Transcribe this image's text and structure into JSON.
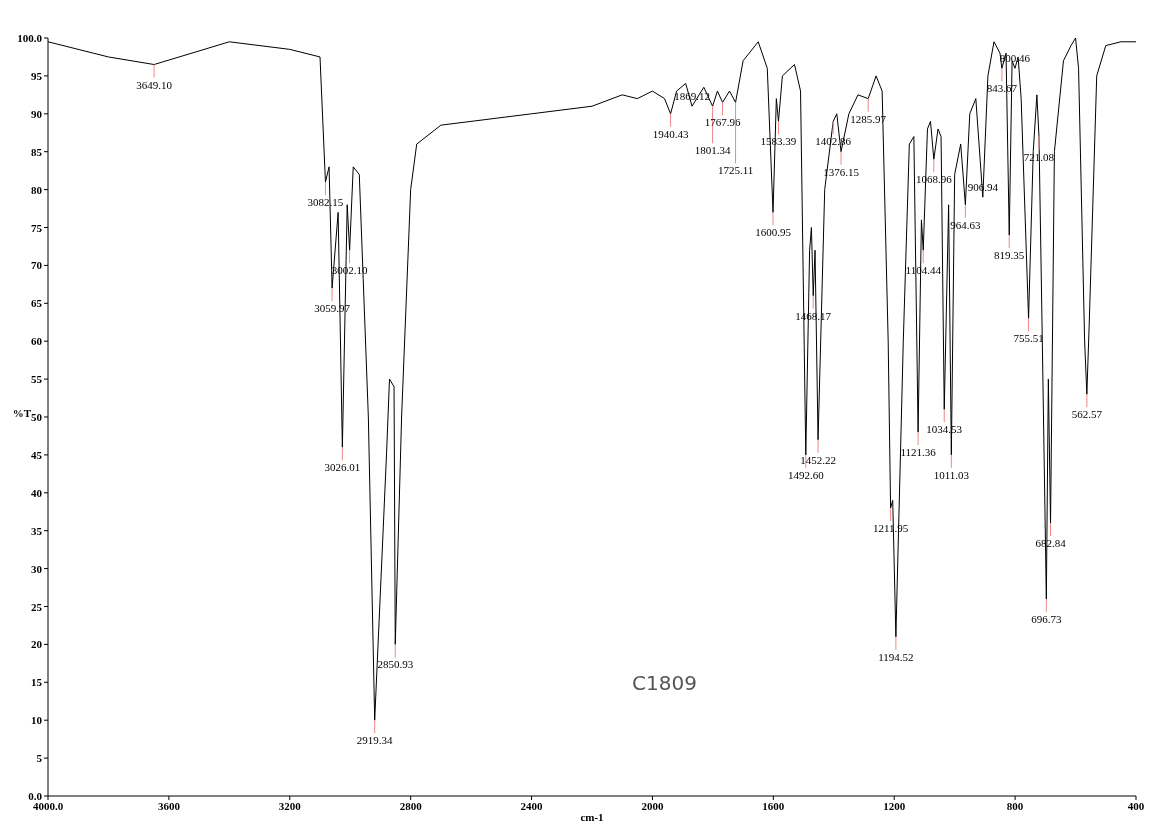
{
  "chart_data": {
    "type": "line",
    "xlabel": "cm-1",
    "ylabel": "%T",
    "xlim": [
      4000,
      400
    ],
    "ylim": [
      0,
      100
    ],
    "xticks": [
      {
        "value": 4000,
        "label": "4000.0"
      },
      3600,
      3200,
      2800,
      2400,
      2000,
      1600,
      1200,
      800,
      400
    ],
    "yticks": [
      {
        "value": 0,
        "label": "0.0"
      },
      5,
      10,
      15,
      20,
      25,
      30,
      35,
      40,
      45,
      50,
      55,
      60,
      65,
      70,
      75,
      80,
      85,
      90,
      95,
      {
        "value": 100,
        "label": "100.0"
      }
    ],
    "grid": false,
    "line_style": "solid",
    "series": [
      {
        "color": "#000000",
        "x": [
          4000,
          3800,
          3649,
          3400,
          3200,
          3100,
          3082,
          3070,
          3060,
          3040,
          3026,
          3010,
          3002,
          2990,
          2970,
          2940,
          2919,
          2880,
          2870,
          2855,
          2851,
          2830,
          2800,
          2780,
          2700,
          2600,
          2400,
          2200,
          2100,
          2050,
          2000,
          1960,
          1940,
          1920,
          1890,
          1869,
          1830,
          1801,
          1785,
          1768,
          1745,
          1725,
          1700,
          1650,
          1620,
          1601,
          1590,
          1583,
          1570,
          1530,
          1510,
          1492.6,
          1480,
          1474,
          1468,
          1462,
          1452,
          1430,
          1402,
          1390,
          1376,
          1350,
          1320,
          1286,
          1260,
          1240,
          1220,
          1212,
          1205,
          1194.5,
          1170,
          1150,
          1135,
          1121,
          1110,
          1104,
          1090,
          1080,
          1069,
          1055,
          1045,
          1034.5,
          1020,
          1011,
          1000,
          980,
          964.6,
          950,
          930,
          906.9,
          890,
          870,
          850,
          843.7,
          830,
          819.4,
          810,
          800.5,
          790,
          780,
          755.5,
          740,
          728,
          721,
          710,
          696.7,
          690,
          682.8,
          670,
          640,
          615,
          600,
          590,
          570,
          562.6,
          555,
          530,
          500,
          450,
          400
        ],
        "values": [
          99.5,
          97.5,
          96.5,
          99.5,
          98.5,
          97.5,
          81,
          83,
          67,
          77,
          46,
          78,
          72,
          83,
          82,
          50,
          10,
          45,
          55,
          54,
          20,
          50,
          80,
          86,
          88.5,
          89,
          90,
          91,
          92.5,
          92,
          93,
          92,
          90,
          93,
          94,
          91,
          93.5,
          91,
          93,
          91.5,
          93,
          91.5,
          97,
          99.5,
          96,
          77,
          92,
          89,
          95,
          96.5,
          93,
          45,
          72,
          75,
          66,
          72,
          47,
          80,
          89,
          90,
          85,
          90,
          92.5,
          92,
          95,
          93,
          60,
          38,
          39,
          21,
          60,
          86,
          87,
          48,
          76,
          72,
          88,
          89,
          84,
          88,
          87,
          51,
          78,
          45,
          82,
          86,
          78,
          90,
          92,
          79,
          95,
          99.5,
          98,
          96,
          98,
          74,
          97,
          96,
          97.5,
          92,
          63,
          85,
          92.5,
          87,
          60,
          26,
          55,
          36,
          85,
          97,
          99,
          100,
          96,
          60,
          53,
          62,
          95,
          99,
          99.5,
          99.5
        ]
      }
    ],
    "annotations": [
      {
        "text": "3649.10",
        "x": 3649,
        "y": 96.5
      },
      {
        "text": "3082.15",
        "x": 3082,
        "y": 81
      },
      {
        "text": "3059.97",
        "x": 3060,
        "y": 67
      },
      {
        "text": "3026.01",
        "x": 3026,
        "y": 46
      },
      {
        "text": "3002.10",
        "x": 3002,
        "y": 72
      },
      {
        "text": "2919.34",
        "x": 2919,
        "y": 10
      },
      {
        "text": "2850.93",
        "x": 2851,
        "y": 20
      },
      {
        "text": "1940.43",
        "x": 1940,
        "y": 90
      },
      {
        "text": "1869.12",
        "x": 1869,
        "y": 91
      },
      {
        "text": "1801.34",
        "x": 1801,
        "y": 91
      },
      {
        "text": "1767.96",
        "x": 1768,
        "y": 91.5
      },
      {
        "text": "1725.11",
        "x": 1725,
        "y": 91.5
      },
      {
        "text": "1600.95",
        "x": 1601,
        "y": 77
      },
      {
        "text": "1583.39",
        "x": 1583,
        "y": 89
      },
      {
        "text": "1492.60",
        "x": 1492.6,
        "y": 45
      },
      {
        "text": "1468.17",
        "x": 1468,
        "y": 66
      },
      {
        "text": "1452.22",
        "x": 1452,
        "y": 47
      },
      {
        "text": "1402.86",
        "x": 1402,
        "y": 89
      },
      {
        "text": "1376.15",
        "x": 1376,
        "y": 85
      },
      {
        "text": "1285.97",
        "x": 1286,
        "y": 92
      },
      {
        "text": "1211.95",
        "x": 1212,
        "y": 38
      },
      {
        "text": "1194.52",
        "x": 1194.5,
        "y": 21
      },
      {
        "text": "1121.36",
        "x": 1121,
        "y": 48
      },
      {
        "text": "1104.44",
        "x": 1104,
        "y": 72
      },
      {
        "text": "1068.96",
        "x": 1069,
        "y": 84
      },
      {
        "text": "1034.53",
        "x": 1034.5,
        "y": 51
      },
      {
        "text": "1011.03",
        "x": 1011,
        "y": 45
      },
      {
        "text": "964.63",
        "x": 964.6,
        "y": 78
      },
      {
        "text": "906.94",
        "x": 906.9,
        "y": 79
      },
      {
        "text": "843.67",
        "x": 843.7,
        "y": 96
      },
      {
        "text": "819.35",
        "x": 819.4,
        "y": 74
      },
      {
        "text": "800.46",
        "x": 800.5,
        "y": 96
      },
      {
        "text": "755.51",
        "x": 755.5,
        "y": 63
      },
      {
        "text": "721.08",
        "x": 721,
        "y": 87
      },
      {
        "text": "696.73",
        "x": 696.7,
        "y": 26
      },
      {
        "text": "682.84",
        "x": 682.8,
        "y": 36
      },
      {
        "text": "562.57",
        "x": 562.6,
        "y": 53
      },
      "C1809"
    ]
  }
}
